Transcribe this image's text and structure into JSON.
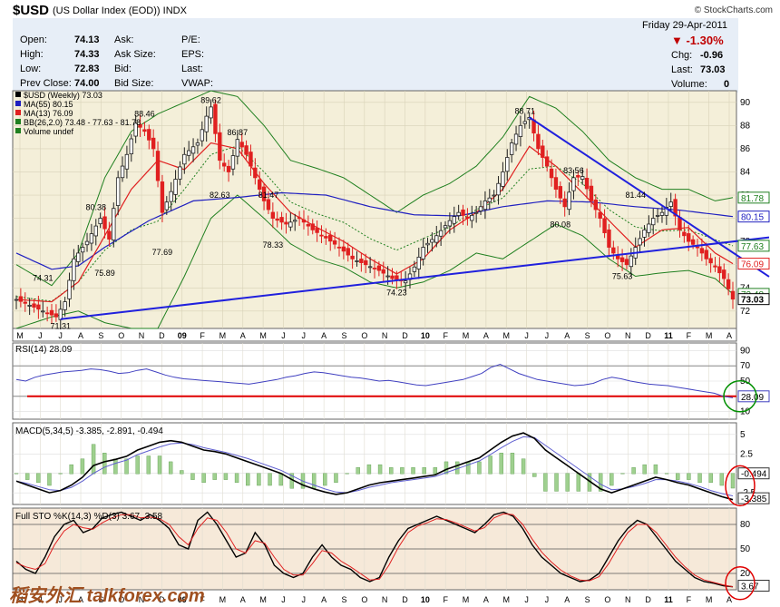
{
  "header": {
    "symbol": "$USD",
    "description": "(US Dollar Index (EOD))",
    "exchange": "INDX",
    "copyright": "© StockCharts.com"
  },
  "quote": {
    "date": "Friday  29-Apr-2011",
    "pct_change": "▼ -1.30%",
    "rows_left": [
      {
        "label": "Open:",
        "value": "74.13"
      },
      {
        "label": "High:",
        "value": "74.33"
      },
      {
        "label": "Low:",
        "value": "72.83"
      },
      {
        "label": "Prev Close:",
        "value": "74.00"
      }
    ],
    "rows_mid": [
      "Ask:",
      "Ask Size:",
      "Bid:",
      "Bid Size:"
    ],
    "rows_mid2": [
      "P/E:",
      "EPS:",
      "Last:",
      "VWAP:"
    ],
    "rows_right": [
      {
        "label": "Chg:",
        "value": "-0.96"
      },
      {
        "label": "Last:",
        "value": "73.03"
      },
      {
        "label": "Volume:",
        "value": "0"
      }
    ]
  },
  "colors": {
    "price_bg": "#f4efd9",
    "ind_bg": "#f6e9d9",
    "ma55": "#2020c0",
    "ma13": "#e02020",
    "bb": "#208020",
    "up": "#202020",
    "down": "#e02020",
    "trend": "#2020dd"
  },
  "chart_data": [
    {
      "type": "candlestick",
      "legend": [
        {
          "label": "$USD (Weekly) 73.03",
          "color": "#000000"
        },
        {
          "label": "MA(55) 80.15",
          "color": "#2020c0"
        },
        {
          "label": "MA(13) 76.09",
          "color": "#e02020"
        },
        {
          "label": "BB(26,2.0) 73.48 - 77.63 - 81.78",
          "color": "#208020"
        },
        {
          "label": "Volume undef",
          "color": "#208020"
        }
      ],
      "ylim": [
        70.5,
        91
      ],
      "y_ticks": [
        72,
        74,
        76,
        78,
        80,
        82,
        84,
        86,
        88,
        90
      ],
      "x_labels": [
        "M",
        "J",
        "J",
        "A",
        "S",
        "O",
        "N",
        "D",
        "09",
        "F",
        "M",
        "A",
        "M",
        "J",
        "J",
        "A",
        "S",
        "O",
        "N",
        "D",
        "10",
        "F",
        "M",
        "A",
        "M",
        "J",
        "J",
        "A",
        "S",
        "O",
        "N",
        "D",
        "11",
        "F",
        "M",
        "A"
      ],
      "price_points": [
        [
          0,
          73.0
        ],
        [
          3,
          72.5
        ],
        [
          6,
          72.0
        ],
        [
          9,
          71.5
        ],
        [
          11,
          72.8
        ],
        [
          13,
          76.5
        ],
        [
          16,
          78.0
        ],
        [
          19,
          80.0
        ],
        [
          21,
          78.2
        ],
        [
          23,
          83.5
        ],
        [
          25,
          85.5
        ],
        [
          27,
          88.2
        ],
        [
          29,
          87.5
        ],
        [
          31,
          86.0
        ],
        [
          33,
          80.5
        ],
        [
          35,
          82.3
        ],
        [
          38,
          85.5
        ],
        [
          41,
          86.5
        ],
        [
          43,
          88.8
        ],
        [
          44,
          89.6
        ],
        [
          46,
          85.0
        ],
        [
          48,
          84.0
        ],
        [
          50,
          86.8
        ],
        [
          52,
          85.5
        ],
        [
          54,
          83.5
        ],
        [
          56,
          81.5
        ],
        [
          58,
          80.0
        ],
        [
          61,
          79.5
        ],
        [
          64,
          80.0
        ],
        [
          67,
          79.0
        ],
        [
          70,
          78.3
        ],
        [
          73,
          77.5
        ],
        [
          76,
          76.5
        ],
        [
          79,
          76.0
        ],
        [
          82,
          75.5
        ],
        [
          85,
          74.8
        ],
        [
          88,
          74.6
        ],
        [
          90,
          75.8
        ],
        [
          92,
          77.5
        ],
        [
          95,
          78.5
        ],
        [
          98,
          79.8
        ],
        [
          100,
          80.5
        ],
        [
          102,
          80.0
        ],
        [
          104,
          80.5
        ],
        [
          106,
          81.5
        ],
        [
          108,
          82.0
        ],
        [
          110,
          84.0
        ],
        [
          112,
          86.5
        ],
        [
          114,
          88.0
        ],
        [
          116,
          88.7
        ],
        [
          118,
          86.0
        ],
        [
          120,
          84.5
        ],
        [
          122,
          82.5
        ],
        [
          124,
          81.0
        ],
        [
          126,
          83.5
        ],
        [
          128,
          83.6
        ],
        [
          130,
          81.5
        ],
        [
          132,
          80.0
        ],
        [
          134,
          77.5
        ],
        [
          136,
          76.5
        ],
        [
          138,
          76.0
        ],
        [
          140,
          77.5
        ],
        [
          142,
          79.0
        ],
        [
          144,
          80.0
        ],
        [
          146,
          80.5
        ],
        [
          148,
          81.4
        ],
        [
          150,
          79.0
        ],
        [
          152,
          78.0
        ],
        [
          154,
          77.5
        ],
        [
          156,
          76.5
        ],
        [
          158,
          75.8
        ],
        [
          160,
          74.8
        ],
        [
          162,
          73.03
        ]
      ],
      "ma13_points": [
        [
          0,
          73.0
        ],
        [
          8,
          72.8
        ],
        [
          14,
          74.5
        ],
        [
          20,
          78.5
        ],
        [
          26,
          82.5
        ],
        [
          32,
          85.0
        ],
        [
          38,
          84.2
        ],
        [
          44,
          86.5
        ],
        [
          50,
          86.0
        ],
        [
          56,
          83.0
        ],
        [
          62,
          80.5
        ],
        [
          68,
          79.2
        ],
        [
          74,
          78.0
        ],
        [
          80,
          76.5
        ],
        [
          86,
          75.2
        ],
        [
          92,
          76.5
        ],
        [
          98,
          79.0
        ],
        [
          104,
          80.5
        ],
        [
          110,
          82.5
        ],
        [
          116,
          86.2
        ],
        [
          122,
          84.5
        ],
        [
          128,
          82.2
        ],
        [
          134,
          79.8
        ],
        [
          140,
          77.5
        ],
        [
          146,
          79.0
        ],
        [
          152,
          79.2
        ],
        [
          158,
          77.0
        ],
        [
          162,
          76.09
        ]
      ],
      "ma55_points": [
        [
          0,
          77.0
        ],
        [
          8,
          75.6
        ],
        [
          14,
          75.9
        ],
        [
          20,
          77.5
        ],
        [
          30,
          79.8
        ],
        [
          40,
          81.5
        ],
        [
          50,
          81.8
        ],
        [
          60,
          82.2
        ],
        [
          70,
          82.0
        ],
        [
          80,
          81.0
        ],
        [
          90,
          80.3
        ],
        [
          100,
          80.2
        ],
        [
          110,
          81.0
        ],
        [
          120,
          81.5
        ],
        [
          130,
          81.4
        ],
        [
          140,
          81.0
        ],
        [
          150,
          80.7
        ],
        [
          162,
          80.15
        ]
      ],
      "bb_upper_points": [
        [
          0,
          76.0
        ],
        [
          8,
          74.2
        ],
        [
          14,
          77.0
        ],
        [
          20,
          83.5
        ],
        [
          26,
          87.5
        ],
        [
          32,
          89.0
        ],
        [
          38,
          90.0
        ],
        [
          44,
          91.0
        ],
        [
          50,
          90.5
        ],
        [
          56,
          88.0
        ],
        [
          62,
          85.0
        ],
        [
          68,
          84.3
        ],
        [
          74,
          83.5
        ],
        [
          80,
          82.0
        ],
        [
          86,
          80.5
        ],
        [
          92,
          82.0
        ],
        [
          98,
          83.0
        ],
        [
          104,
          84.5
        ],
        [
          110,
          87.0
        ],
        [
          116,
          90.5
        ],
        [
          122,
          89.5
        ],
        [
          128,
          87.5
        ],
        [
          134,
          85.0
        ],
        [
          140,
          83.5
        ],
        [
          146,
          82.5
        ],
        [
          152,
          82.5
        ],
        [
          158,
          81.5
        ],
        [
          162,
          81.78
        ]
      ],
      "bb_lower_points": [
        [
          0,
          70.5
        ],
        [
          8,
          71.5
        ],
        [
          14,
          72.0
        ],
        [
          20,
          71.0
        ],
        [
          26,
          70.5
        ],
        [
          32,
          70.5
        ],
        [
          38,
          75.0
        ],
        [
          44,
          80.0
        ],
        [
          50,
          82.0
        ],
        [
          56,
          80.0
        ],
        [
          62,
          77.8
        ],
        [
          68,
          76.5
        ],
        [
          74,
          75.8
        ],
        [
          80,
          74.5
        ],
        [
          86,
          74.0
        ],
        [
          92,
          74.5
        ],
        [
          98,
          75.5
        ],
        [
          104,
          77.0
        ],
        [
          110,
          76.5
        ],
        [
          116,
          78.0
        ],
        [
          122,
          79.5
        ],
        [
          128,
          78.5
        ],
        [
          134,
          76.5
        ],
        [
          140,
          75.0
        ],
        [
          146,
          75.3
        ],
        [
          152,
          75.5
        ],
        [
          158,
          74.8
        ],
        [
          162,
          73.48
        ]
      ],
      "trendlines": [
        [
          [
            10,
            71.3
          ],
          [
            162,
            78.0
          ]
        ],
        [
          [
            116,
            88.7
          ],
          [
            162,
            77.0
          ]
        ]
      ],
      "annotations": [
        {
          "text": "74.31",
          "x": 6,
          "y": 74.31
        },
        {
          "text": "71.31",
          "x": 10,
          "y": 71.31
        },
        {
          "text": "75.89",
          "x": 20,
          "y": 75.89
        },
        {
          "text": "80.38",
          "x": 18,
          "y": 80.38
        },
        {
          "text": "88.46",
          "x": 29,
          "y": 88.46
        },
        {
          "text": "77.69",
          "x": 33,
          "y": 77.69
        },
        {
          "text": "89.62",
          "x": 44,
          "y": 89.62
        },
        {
          "text": "82.63",
          "x": 46,
          "y": 82.63
        },
        {
          "text": "86.87",
          "x": 50,
          "y": 86.87
        },
        {
          "text": "81.47",
          "x": 57,
          "y": 81.47
        },
        {
          "text": "78.33",
          "x": 58,
          "y": 78.33
        },
        {
          "text": "74.23",
          "x": 86,
          "y": 74.23
        },
        {
          "text": "88.71",
          "x": 115,
          "y": 88.71
        },
        {
          "text": "83.56",
          "x": 126,
          "y": 83.56
        },
        {
          "text": "80.08",
          "x": 123,
          "y": 80.08
        },
        {
          "text": "81.44",
          "x": 140,
          "y": 81.44
        },
        {
          "text": "75.63",
          "x": 137,
          "y": 75.63
        }
      ],
      "value_tags": [
        {
          "text": "81.78",
          "y": 81.78,
          "color": "#208020"
        },
        {
          "text": "80.15",
          "y": 80.15,
          "color": "#2020c0"
        },
        {
          "text": "77.63",
          "y": 77.63,
          "color": "#208020"
        },
        {
          "text": "76.09",
          "y": 76.09,
          "color": "#e02020"
        },
        {
          "text": "73.48",
          "y": 73.48,
          "color": "#208020"
        },
        {
          "text": "73.03",
          "y": 73.03,
          "color": "#000000"
        }
      ]
    },
    {
      "type": "line",
      "title": "RSI(14) 28.09",
      "ylim": [
        0,
        100
      ],
      "y_ticks": [
        10,
        30,
        50,
        70,
        90
      ],
      "ref_lines": [
        30,
        70
      ],
      "support_value": 30,
      "last_value": "28.09",
      "values": [
        52,
        50,
        55,
        58,
        60,
        62,
        63,
        64,
        66,
        65,
        63,
        60,
        61,
        64,
        66,
        62,
        58,
        55,
        53,
        52,
        51,
        50,
        49,
        48,
        47,
        46,
        48,
        50,
        52,
        55,
        57,
        60,
        62,
        61,
        59,
        57,
        55,
        54,
        52,
        50,
        51,
        49,
        47,
        45,
        44,
        46,
        48,
        50,
        52,
        56,
        60,
        68,
        72,
        66,
        60,
        56,
        52,
        50,
        48,
        46,
        44,
        45,
        47,
        52,
        55,
        53,
        50,
        48,
        46,
        45,
        44,
        42,
        40,
        38,
        36,
        34,
        30,
        28.09
      ]
    },
    {
      "type": "line",
      "title": "MACD(5,34,5) -3.385, -2.891, -0.494",
      "ylim": [
        -4,
        6.5
      ],
      "y_ticks": [
        -2.5,
        0,
        2.5,
        5
      ],
      "last_values": [
        "-0.494",
        "-3.385"
      ],
      "macd": [
        -1.0,
        -1.5,
        -2.0,
        -2.5,
        -2.2,
        -1.5,
        -0.5,
        1.0,
        1.5,
        1.8,
        2.2,
        3.0,
        3.5,
        4.0,
        4.2,
        4.0,
        3.5,
        3.0,
        2.8,
        2.5,
        2.0,
        1.5,
        1.0,
        0.5,
        0.0,
        -0.8,
        -1.5,
        -2.0,
        -2.4,
        -2.7,
        -2.5,
        -2.0,
        -1.5,
        -1.2,
        -1.0,
        -0.8,
        -0.6,
        -0.4,
        -0.2,
        0.5,
        1.0,
        1.5,
        2.0,
        3.0,
        4.0,
        4.8,
        5.2,
        4.5,
        3.0,
        2.0,
        1.0,
        0.0,
        -1.0,
        -2.0,
        -2.5,
        -2.0,
        -1.5,
        -1.0,
        -0.5,
        -0.8,
        -1.2,
        -1.5,
        -2.0,
        -2.5,
        -3.0,
        -3.385
      ],
      "signal": [
        -1.0,
        -1.3,
        -1.7,
        -2.1,
        -2.2,
        -1.8,
        -1.0,
        0.0,
        0.8,
        1.3,
        1.7,
        2.4,
        2.9,
        3.4,
        3.8,
        3.9,
        3.7,
        3.3,
        3.0,
        2.7,
        2.3,
        1.9,
        1.4,
        0.9,
        0.4,
        -0.3,
        -1.0,
        -1.5,
        -2.0,
        -2.4,
        -2.5,
        -2.2,
        -1.8,
        -1.5,
        -1.2,
        -1.0,
        -0.8,
        -0.6,
        -0.4,
        0.1,
        0.6,
        1.1,
        1.6,
        2.4,
        3.3,
        4.1,
        4.7,
        4.6,
        3.6,
        2.6,
        1.6,
        0.6,
        -0.4,
        -1.4,
        -2.1,
        -2.0,
        -1.7,
        -1.3,
        -0.8,
        -0.8,
        -1.0,
        -1.3,
        -1.7,
        -2.2,
        -2.6,
        -2.891
      ]
    },
    {
      "type": "line",
      "title": "Full STO %K(14,3) %D(3) 3.67, 3.58",
      "ylim": [
        0,
        100
      ],
      "y_ticks": [
        20,
        50,
        80
      ],
      "ref_lines": [
        20,
        80
      ],
      "last_value": "3.67",
      "k": [
        35,
        25,
        20,
        40,
        65,
        80,
        85,
        70,
        75,
        88,
        92,
        95,
        90,
        85,
        92,
        85,
        75,
        55,
        50,
        85,
        95,
        80,
        60,
        40,
        45,
        70,
        55,
        30,
        20,
        15,
        20,
        40,
        55,
        40,
        30,
        25,
        15,
        10,
        15,
        40,
        60,
        75,
        80,
        85,
        90,
        85,
        80,
        75,
        70,
        80,
        92,
        95,
        90,
        75,
        55,
        40,
        30,
        20,
        15,
        10,
        12,
        20,
        40,
        60,
        75,
        85,
        80,
        65,
        50,
        35,
        25,
        15,
        10,
        8,
        5,
        3.67
      ],
      "d": [
        33,
        28,
        25,
        32,
        55,
        72,
        80,
        76,
        74,
        82,
        88,
        92,
        92,
        88,
        89,
        87,
        80,
        65,
        55,
        75,
        88,
        85,
        70,
        50,
        45,
        60,
        57,
        40,
        25,
        18,
        18,
        32,
        48,
        45,
        35,
        28,
        20,
        12,
        13,
        30,
        52,
        70,
        78,
        82,
        87,
        86,
        82,
        77,
        72,
        76,
        88,
        93,
        92,
        80,
        62,
        46,
        34,
        24,
        17,
        12,
        11,
        16,
        32,
        52,
        70,
        80,
        80,
        70,
        55,
        40,
        28,
        18,
        12,
        9,
        6,
        3.58
      ]
    }
  ],
  "watermark": "稻安外汇 talkforex.com"
}
